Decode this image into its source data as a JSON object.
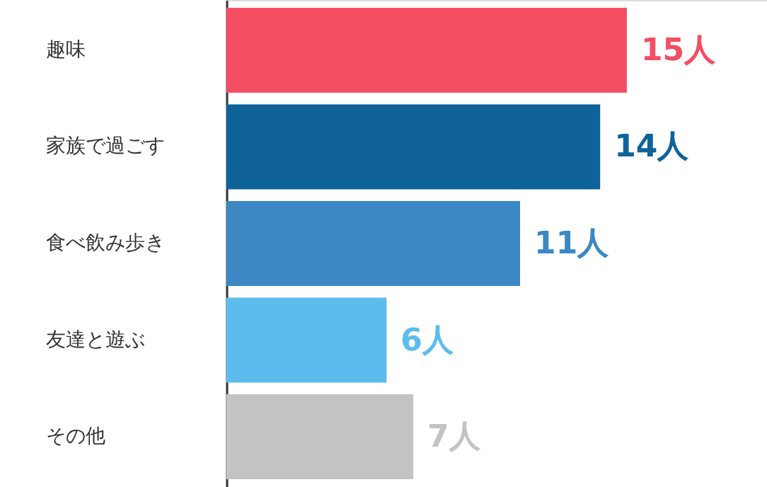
{
  "chart_data": {
    "type": "bar",
    "orientation": "horizontal",
    "categories": [
      "趣味",
      "家族で過ごす",
      "食べ飲み歩き",
      "友達と遊ぶ",
      "その他"
    ],
    "values": [
      15,
      14,
      11,
      6,
      7
    ],
    "colors": [
      "#f44e63",
      "#0f6399",
      "#3b88c4",
      "#5bbced",
      "#c3c3c3"
    ],
    "value_labels": [
      "15人",
      "14人",
      "11人",
      "6人",
      "7人"
    ],
    "grid": false
  }
}
